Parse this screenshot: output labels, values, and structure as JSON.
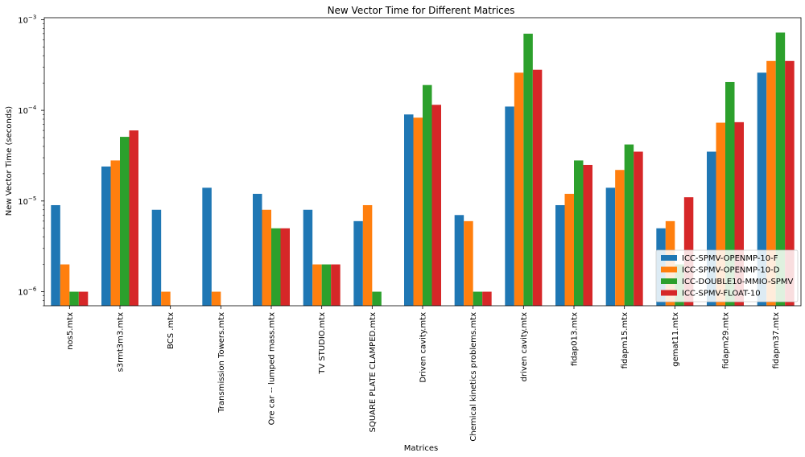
{
  "chart_data": {
    "type": "bar",
    "title": "New Vector Time for Different Matrices",
    "xlabel": "Matrices",
    "ylabel": "New Vector Time (seconds)",
    "yscale": "log",
    "ylim": [
      7e-07,
      0.00105
    ],
    "y_ticks": [
      {
        "value": 1e-06,
        "base": "10",
        "exp": "−6"
      },
      {
        "value": 1e-05,
        "base": "10",
        "exp": "−5"
      },
      {
        "value": 0.0001,
        "base": "10",
        "exp": "−4"
      },
      {
        "value": 0.001,
        "base": "10",
        "exp": "−3"
      }
    ],
    "grid": false,
    "legend_position": "lower-right",
    "categories": [
      "nos5.mtx",
      "s3rmt3m3.mtx",
      "BCS .mtx",
      "Transmission Towers.mtx",
      "Ore car -- lumped mass.mtx",
      "TV STUDIO.mtx",
      "SQUARE PLATE CLAMPED.mtx",
      "Driven cavity.mtx",
      "Chemical kinetics problems.mtx",
      "driven cavity.mtx",
      "fidap013.mtx",
      "fidapm15.mtx",
      "gemat11.mtx",
      "fidapm29.mtx",
      "fidapm37.mtx"
    ],
    "series": [
      {
        "name": "ICC-SPMV-OPENMP-10-F",
        "color": "#1f77b4",
        "values": [
          9e-06,
          2.4e-05,
          8e-06,
          1.4e-05,
          1.2e-05,
          8e-06,
          6e-06,
          9e-05,
          7e-06,
          0.00011,
          9e-06,
          1.4e-05,
          5e-06,
          3.5e-05,
          0.00026
        ]
      },
      {
        "name": "ICC-SPMV-OPENMP-10-D",
        "color": "#ff7f0e",
        "values": [
          2e-06,
          2.8e-05,
          1e-06,
          1e-06,
          8e-06,
          2e-06,
          9e-06,
          8.3e-05,
          6e-06,
          0.00026,
          1.2e-05,
          2.2e-05,
          6e-06,
          7.3e-05,
          0.00035
        ]
      },
      {
        "name": "ICC-DOUBLE10-MMIO-SPMV",
        "color": "#2ca02c",
        "values": [
          1e-06,
          5.1e-05,
          null,
          null,
          5e-06,
          2e-06,
          1e-06,
          0.00019,
          1e-06,
          0.0007,
          2.8e-05,
          4.2e-05,
          2e-06,
          0.000205,
          0.00072
        ]
      },
      {
        "name": "ICC-SPMV-FLOAT-10",
        "color": "#d62728",
        "values": [
          1e-06,
          6e-05,
          null,
          null,
          5e-06,
          2e-06,
          null,
          0.000115,
          1e-06,
          0.00028,
          2.5e-05,
          3.5e-05,
          1.1e-05,
          7.4e-05,
          0.00035
        ]
      }
    ]
  }
}
